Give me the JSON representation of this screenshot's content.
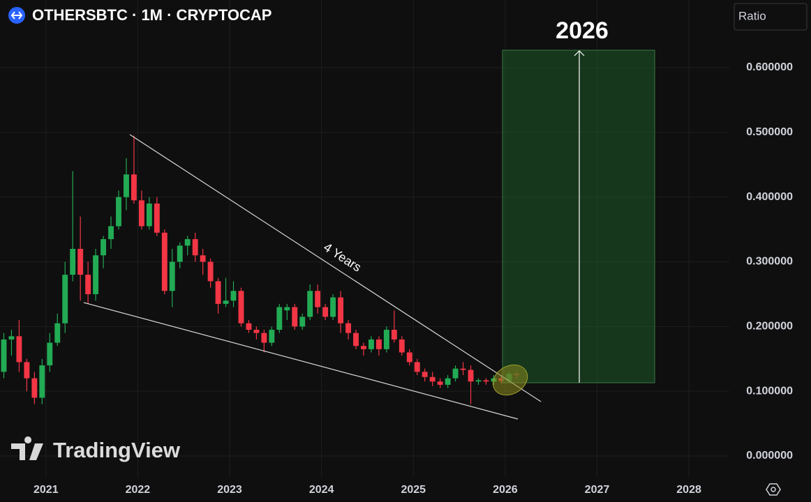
{
  "chart_data": {
    "type": "candlestick",
    "title": "OTHERSBTC · 1M · CRYPTOCAP",
    "scale_button": "Ratio",
    "watermark": "TradingView",
    "annotations": [
      "2026",
      "4 Years"
    ],
    "up_color": "#22ab54",
    "down_color": "#f23645",
    "grid": true,
    "xlim": [
      2020.5,
      2028.44
    ],
    "xticks": [
      2021,
      2022,
      2023,
      2024,
      2025,
      2026,
      2027,
      2028
    ],
    "ylim": [
      -0.0334,
      0.7045
    ],
    "yticks": [
      {
        "value": 0,
        "label": "0.000000"
      },
      {
        "value": 0.1,
        "label": "0.100000"
      },
      {
        "value": 0.2,
        "label": "0.200000"
      },
      {
        "value": 0.3,
        "label": "0.300000"
      },
      {
        "value": 0.4,
        "label": "0.400000"
      },
      {
        "value": 0.5,
        "label": "0.500000"
      },
      {
        "value": 0.6,
        "label": "0.600000"
      }
    ],
    "x": [
      "2020-07",
      "2020-08",
      "2020-09",
      "2020-10",
      "2020-11",
      "2020-12",
      "2021-01",
      "2021-02",
      "2021-03",
      "2021-04",
      "2021-05",
      "2021-06",
      "2021-07",
      "2021-08",
      "2021-09",
      "2021-10",
      "2021-11",
      "2021-12",
      "2022-01",
      "2022-02",
      "2022-03",
      "2022-04",
      "2022-05",
      "2022-06",
      "2022-07",
      "2022-08",
      "2022-09",
      "2022-10",
      "2022-11",
      "2022-12",
      "2023-01",
      "2023-02",
      "2023-03",
      "2023-04",
      "2023-05",
      "2023-06",
      "2023-07",
      "2023-08",
      "2023-09",
      "2023-10",
      "2023-11",
      "2023-12",
      "2024-01",
      "2024-02",
      "2024-03",
      "2024-04",
      "2024-05",
      "2024-06",
      "2024-07",
      "2024-08",
      "2024-09",
      "2024-10",
      "2024-11",
      "2024-12",
      "2025-01",
      "2025-02",
      "2025-03",
      "2025-04",
      "2025-05",
      "2025-06",
      "2025-07",
      "2025-08",
      "2025-09",
      "2025-10",
      "2025-11",
      "2025-12",
      "2026-01",
      "2026-02"
    ],
    "open": [
      0.13,
      0.18,
      0.185,
      0.145,
      0.12,
      0.09,
      0.14,
      0.175,
      0.205,
      0.28,
      0.32,
      0.28,
      0.25,
      0.31,
      0.335,
      0.355,
      0.4,
      0.435,
      0.395,
      0.355,
      0.39,
      0.345,
      0.255,
      0.3,
      0.325,
      0.335,
      0.31,
      0.3,
      0.27,
      0.235,
      0.24,
      0.255,
      0.205,
      0.195,
      0.19,
      0.175,
      0.195,
      0.225,
      0.23,
      0.2,
      0.215,
      0.255,
      0.23,
      0.215,
      0.245,
      0.205,
      0.19,
      0.17,
      0.165,
      0.18,
      0.165,
      0.195,
      0.18,
      0.16,
      0.145,
      0.13,
      0.122,
      0.115,
      0.11,
      0.12,
      0.135,
      0.133,
      0.115,
      0.117,
      0.115,
      0.12,
      0.116,
      0.127
    ],
    "high": [
      0.19,
      0.195,
      0.21,
      0.15,
      0.13,
      0.15,
      0.19,
      0.22,
      0.3,
      0.44,
      0.37,
      0.3,
      0.32,
      0.34,
      0.37,
      0.41,
      0.46,
      0.495,
      0.41,
      0.4,
      0.4,
      0.35,
      0.32,
      0.33,
      0.34,
      0.345,
      0.32,
      0.305,
      0.275,
      0.275,
      0.27,
      0.26,
      0.21,
      0.2,
      0.195,
      0.2,
      0.235,
      0.235,
      0.235,
      0.22,
      0.265,
      0.265,
      0.235,
      0.25,
      0.255,
      0.21,
      0.195,
      0.175,
      0.185,
      0.185,
      0.2,
      0.225,
      0.185,
      0.165,
      0.15,
      0.135,
      0.13,
      0.12,
      0.125,
      0.14,
      0.145,
      0.14,
      0.12,
      0.12,
      0.125,
      0.125,
      0.13,
      0.13
    ],
    "low": [
      0.12,
      0.155,
      0.13,
      0.1,
      0.08,
      0.08,
      0.13,
      0.17,
      0.19,
      0.27,
      0.24,
      0.235,
      0.24,
      0.29,
      0.32,
      0.35,
      0.38,
      0.39,
      0.35,
      0.35,
      0.34,
      0.25,
      0.23,
      0.29,
      0.31,
      0.3,
      0.28,
      0.26,
      0.22,
      0.23,
      0.23,
      0.2,
      0.19,
      0.18,
      0.16,
      0.17,
      0.19,
      0.21,
      0.195,
      0.195,
      0.21,
      0.22,
      0.21,
      0.21,
      0.19,
      0.18,
      0.165,
      0.155,
      0.16,
      0.155,
      0.16,
      0.175,
      0.155,
      0.14,
      0.125,
      0.115,
      0.108,
      0.105,
      0.105,
      0.115,
      0.125,
      0.08,
      0.11,
      0.11,
      0.11,
      0.112,
      0.114,
      0.12
    ],
    "close": [
      0.18,
      0.185,
      0.145,
      0.12,
      0.09,
      0.14,
      0.175,
      0.205,
      0.28,
      0.32,
      0.28,
      0.25,
      0.31,
      0.335,
      0.355,
      0.4,
      0.435,
      0.395,
      0.355,
      0.39,
      0.345,
      0.255,
      0.3,
      0.325,
      0.335,
      0.31,
      0.3,
      0.27,
      0.235,
      0.24,
      0.255,
      0.205,
      0.195,
      0.19,
      0.175,
      0.195,
      0.23,
      0.23,
      0.2,
      0.215,
      0.255,
      0.23,
      0.215,
      0.245,
      0.205,
      0.19,
      0.17,
      0.165,
      0.18,
      0.165,
      0.195,
      0.18,
      0.16,
      0.145,
      0.13,
      0.122,
      0.115,
      0.11,
      0.12,
      0.135,
      0.133,
      0.115,
      0.117,
      0.115,
      0.12,
      0.116,
      0.127,
      0.125
    ]
  }
}
